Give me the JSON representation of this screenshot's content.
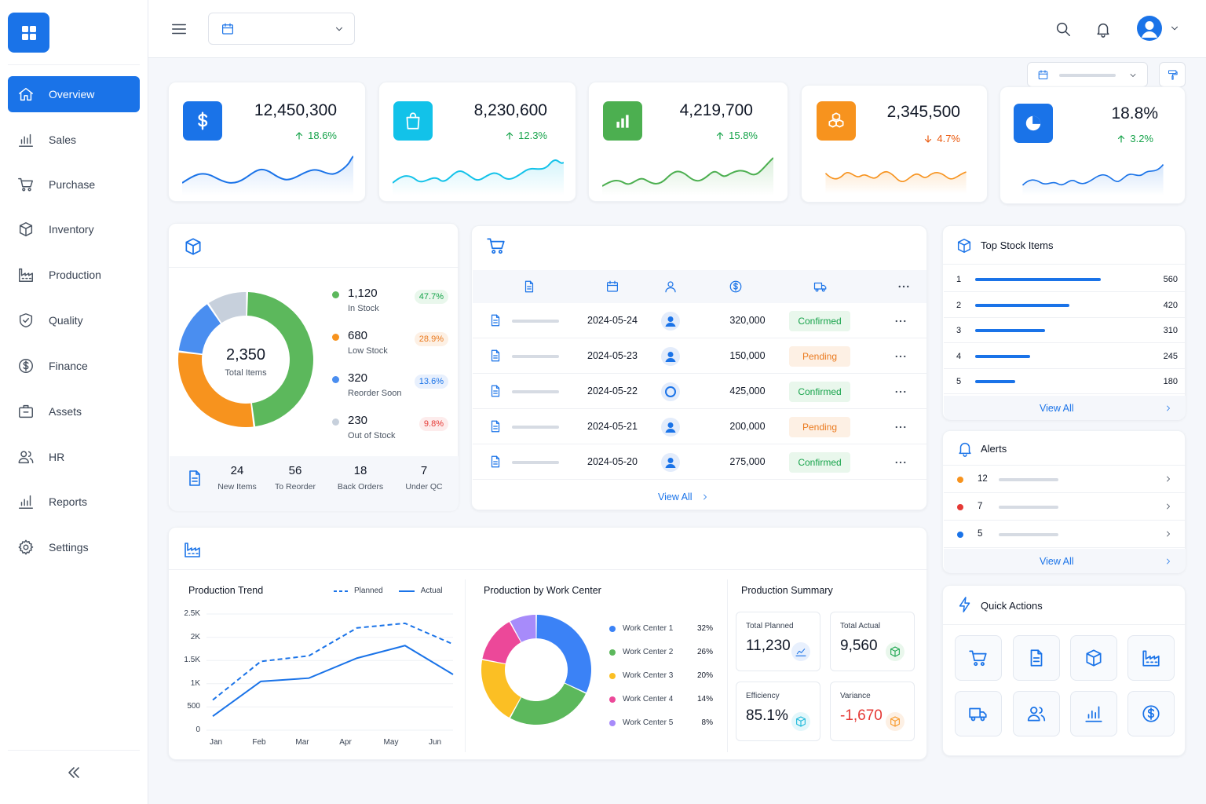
{
  "sidebar": {
    "items": [
      {
        "label": "Overview",
        "icon": "home-icon",
        "active": true
      },
      {
        "label": "Sales",
        "icon": "bar-chart-icon"
      },
      {
        "label": "Purchase",
        "icon": "cart-icon"
      },
      {
        "label": "Inventory",
        "icon": "box-icon"
      },
      {
        "label": "Production",
        "icon": "factory-icon"
      },
      {
        "label": "Quality",
        "icon": "shield-check-icon"
      },
      {
        "label": "Finance",
        "icon": "dollar-circle-icon"
      },
      {
        "label": "Assets",
        "icon": "briefcase-icon"
      },
      {
        "label": "HR",
        "icon": "users-icon"
      },
      {
        "label": "Reports",
        "icon": "reports-icon"
      },
      {
        "label": "Settings",
        "icon": "gear-icon"
      }
    ],
    "accent": "#1a73e8"
  },
  "kpis": [
    {
      "value": "12,450,300",
      "change": "18.6%",
      "trend": "up",
      "icon": "dollar-icon",
      "color": "#1a73e8"
    },
    {
      "value": "8,230,600",
      "change": "12.3%",
      "trend": "up",
      "icon": "shopping-bag-icon",
      "color": "#12c2e9"
    },
    {
      "value": "4,219,700",
      "change": "15.8%",
      "trend": "up",
      "icon": "bar-chart-icon",
      "color": "#4caf50"
    },
    {
      "value": "2,345,500",
      "change": "4.7%",
      "trend": "down",
      "icon": "boxes-icon",
      "color": "#f7931e"
    },
    {
      "value": "18.8%",
      "change": "3.2%",
      "trend": "up",
      "icon": "pie-chart-icon",
      "color": "#1a73e8"
    }
  ],
  "inventory": {
    "total_value": "2,350",
    "total_label": "Total Items",
    "segments": [
      {
        "value": "1,120",
        "label": "In Stock",
        "pct": "47.7%",
        "color": "#5cb85c"
      },
      {
        "value": "680",
        "label": "Low Stock",
        "pct": "28.9%",
        "color": "#f7931e"
      },
      {
        "value": "320",
        "label": "Reorder Soon",
        "pct": "13.6%",
        "color": "#4a8ef0"
      },
      {
        "value": "230",
        "label": "Out of Stock",
        "pct": "9.8%",
        "color": "#c7d0dc"
      }
    ],
    "stats": [
      {
        "value": "24",
        "label": "New Items"
      },
      {
        "value": "56",
        "label": "To Reorder"
      },
      {
        "value": "18",
        "label": "Back Orders"
      },
      {
        "value": "7",
        "label": "Under QC"
      }
    ]
  },
  "orders": {
    "rows": [
      {
        "date": "2024-05-24",
        "amount": "320,000",
        "status": "Confirmed"
      },
      {
        "date": "2024-05-23",
        "amount": "150,000",
        "status": "Pending"
      },
      {
        "date": "2024-05-22",
        "amount": "425,000",
        "status": "Confirmed"
      },
      {
        "date": "2024-05-21",
        "amount": "200,000",
        "status": "Pending"
      },
      {
        "date": "2024-05-20",
        "amount": "275,000",
        "status": "Confirmed"
      }
    ],
    "view_all": "View All"
  },
  "top_stock": {
    "title": "Top Stock Items",
    "items": [
      {
        "rank": "1",
        "value": "560",
        "quantity": 560
      },
      {
        "rank": "2",
        "value": "420",
        "quantity": 420
      },
      {
        "rank": "3",
        "value": "310",
        "quantity": 310
      },
      {
        "rank": "4",
        "value": "245",
        "quantity": 245
      },
      {
        "rank": "5",
        "value": "180",
        "quantity": 180
      }
    ],
    "view_all": "View All"
  },
  "alerts": {
    "title": "Alerts",
    "items": [
      {
        "count": "12",
        "color": "#f7931e"
      },
      {
        "count": "7",
        "color": "#e53935"
      },
      {
        "count": "5",
        "color": "#1a73e8"
      }
    ],
    "view_all": "View All"
  },
  "quick_actions": {
    "title": "Quick Actions",
    "actions": [
      "cart-icon",
      "document-icon",
      "box-icon",
      "factory-icon",
      "truck-icon",
      "users-icon",
      "bar-chart-icon",
      "dollar-circle-icon"
    ]
  },
  "production": {
    "trend": {
      "title": "Production Trend",
      "legend_planned": "Planned",
      "legend_actual": "Actual",
      "y_ticks": [
        "2.5K",
        "2K",
        "1.5K",
        "1K",
        "500",
        "0"
      ],
      "x_ticks": [
        "Jan",
        "Feb",
        "Mar",
        "Apr",
        "May",
        "Jun"
      ]
    },
    "work_center": {
      "title": "Production by Work Center",
      "items": [
        {
          "name": "Work Center 1",
          "pct": "32%",
          "color": "#3b82f6"
        },
        {
          "name": "Work Center 2",
          "pct": "26%",
          "color": "#5cb85c"
        },
        {
          "name": "Work Center 3",
          "pct": "20%",
          "color": "#fbbf24"
        },
        {
          "name": "Work Center 4",
          "pct": "14%",
          "color": "#ec4899"
        },
        {
          "name": "Work Center 5",
          "pct": "8%",
          "color": "#a78bfa"
        }
      ]
    },
    "summary": {
      "title": "Production Summary",
      "total_planned_label": "Total Planned",
      "total_planned": "11,230",
      "total_actual_label": "Total Actual",
      "total_actual": "9,560",
      "efficiency_label": "Efficiency",
      "efficiency": "85.1%",
      "variance_label": "Variance",
      "variance": "-1,670"
    }
  },
  "chart_data": [
    {
      "type": "line",
      "title": "Production Trend",
      "x": [
        "Jan",
        "Feb",
        "Mar",
        "Apr",
        "May",
        "Jun"
      ],
      "series": [
        {
          "name": "Planned",
          "values": [
            650,
            1480,
            1600,
            2200,
            2300,
            1850
          ],
          "style": "dashed"
        },
        {
          "name": "Actual",
          "values": [
            300,
            1050,
            1120,
            1550,
            1820,
            1200
          ],
          "style": "solid"
        }
      ],
      "ylim": [
        0,
        2500
      ],
      "grid": true,
      "legend": "top-right"
    },
    {
      "type": "pie",
      "title": "Production by Work Center",
      "categories": [
        "Work Center 1",
        "Work Center 2",
        "Work Center 3",
        "Work Center 4",
        "Work Center 5"
      ],
      "values": [
        32,
        26,
        20,
        14,
        8
      ],
      "donut": true
    },
    {
      "type": "pie",
      "categories": [
        "In Stock",
        "Low Stock",
        "Reorder Soon",
        "Out of Stock"
      ],
      "values": [
        1120,
        680,
        320,
        230
      ],
      "donut": true
    }
  ]
}
